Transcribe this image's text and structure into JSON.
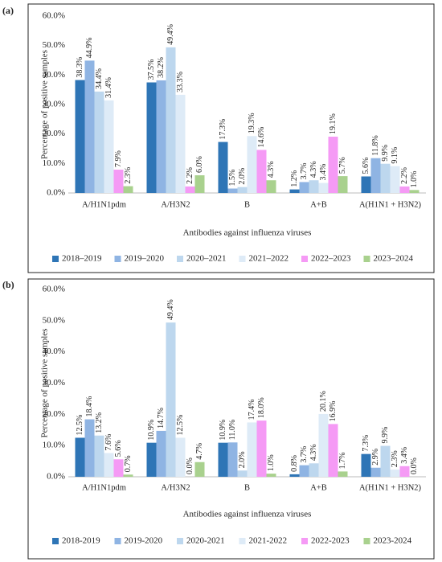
{
  "chart_data": [
    {
      "type": "bar",
      "label": "(a)",
      "y_label": "Percentage of positive samples",
      "x_label": "Antibodies against influenza viruses",
      "categories": [
        "A/H1N1pdm",
        "A/H3N2",
        "B",
        "A+B",
        "A(H1N1 + H3N2)"
      ],
      "ylim": [
        0,
        60
      ],
      "yticks": [
        {
          "value": 0,
          "label": "0.0%"
        },
        {
          "value": 10,
          "label": "10.0%"
        },
        {
          "value": 20,
          "label": "20.0%"
        },
        {
          "value": 30,
          "label": "30.0%"
        },
        {
          "value": 40,
          "label": "40.0%"
        },
        {
          "value": 50,
          "label": "50.0%"
        },
        {
          "value": 60,
          "label": "60.0%"
        }
      ],
      "series": [
        {
          "name": "2018–2019",
          "color": "#2e75b6",
          "values": [
            38.3,
            37.5,
            17.3,
            1.2,
            5.6
          ],
          "value_labels": [
            "38.3%",
            "37.5%",
            "17.3%",
            "1.2%",
            "5.6%"
          ]
        },
        {
          "name": "2019–2020",
          "color": "#8fb4e3",
          "values": [
            44.9,
            38.2,
            1.5,
            3.7,
            11.8
          ],
          "value_labels": [
            "44.9%",
            "38.2%",
            "1.5%",
            "3.7%",
            "11.8%"
          ]
        },
        {
          "name": "2020–2021",
          "color": "#bdd7ee",
          "values": [
            34.4,
            49.4,
            2.0,
            4.3,
            9.9
          ],
          "value_labels": [
            "34.4%",
            "49.4%",
            "2.0%",
            "4.3%",
            "9.9%"
          ]
        },
        {
          "name": "2021–2022",
          "color": "#deebf7",
          "values": [
            31.4,
            33.3,
            19.3,
            3.4,
            9.1
          ],
          "value_labels": [
            "31.4%",
            "33.3%",
            "19.3%",
            "3.4%",
            "9.1%"
          ]
        },
        {
          "name": "2022–2023",
          "color": "#f59af5",
          "values": [
            7.9,
            2.2,
            14.6,
            19.1,
            2.2
          ],
          "value_labels": [
            "7.9%",
            "2.2%",
            "14.6%",
            "19.1%",
            "2.2%"
          ]
        },
        {
          "name": "2023–2024",
          "color": "#a9d18e",
          "values": [
            2.3,
            6.0,
            4.3,
            5.7,
            1.0
          ],
          "value_labels": [
            "2.3%",
            "6.0%",
            "4.3%",
            "5.7%",
            "1.0%"
          ]
        }
      ]
    },
    {
      "type": "bar",
      "label": "(b)",
      "y_label": "Percentage of positive samples",
      "x_label": "Antibodies against influenza viruses",
      "categories": [
        "A/H1N1pdm",
        "A/H3N2",
        "B",
        "A+B",
        "A(H1N1 + H3N2)"
      ],
      "ylim": [
        0,
        60
      ],
      "yticks": [
        {
          "value": 0,
          "label": "0.0%"
        },
        {
          "value": 10,
          "label": "10.0%"
        },
        {
          "value": 20,
          "label": "20.0%"
        },
        {
          "value": 30,
          "label": "30.0%"
        },
        {
          "value": 40,
          "label": "40.0%"
        },
        {
          "value": 50,
          "label": "50.0%"
        },
        {
          "value": 60,
          "label": "60.0%"
        }
      ],
      "series": [
        {
          "name": "2018-2019",
          "color": "#2e75b6",
          "values": [
            12.5,
            10.9,
            10.9,
            0.8,
            7.3
          ],
          "value_labels": [
            "12.5%",
            "10.9%",
            "10.9%",
            "0.8%",
            "7.3%"
          ]
        },
        {
          "name": "2019-2020",
          "color": "#8fb4e3",
          "values": [
            18.4,
            14.7,
            11.0,
            3.7,
            2.9
          ],
          "value_labels": [
            "18.4%",
            "14.7%",
            "11.0%",
            "3.7%",
            "2.9%"
          ]
        },
        {
          "name": "2020-2021",
          "color": "#bdd7ee",
          "values": [
            13.2,
            49.4,
            2.0,
            4.3,
            9.9
          ],
          "value_labels": [
            "13.2%",
            "49.4%",
            "2.0%",
            "4.3%",
            "9.9%"
          ]
        },
        {
          "name": "2021-2022",
          "color": "#deebf7",
          "values": [
            7.6,
            12.5,
            17.4,
            20.1,
            2.3
          ],
          "value_labels": [
            "7.6%",
            "12.5%",
            "17.4%",
            "20.1%",
            "2.3%"
          ]
        },
        {
          "name": "2022-2023",
          "color": "#f59af5",
          "values": [
            5.6,
            0.0,
            18.0,
            16.9,
            3.4
          ],
          "value_labels": [
            "5.6%",
            "0.0%",
            "18.0%",
            "16.9%",
            "3.4%"
          ]
        },
        {
          "name": "2023-2024",
          "color": "#a9d18e",
          "values": [
            0.7,
            4.7,
            1.0,
            1.7,
            0.0
          ],
          "value_labels": [
            "0.7%",
            "4.7%",
            "1.0%",
            "1.7%",
            "0.0%"
          ]
        }
      ]
    }
  ]
}
